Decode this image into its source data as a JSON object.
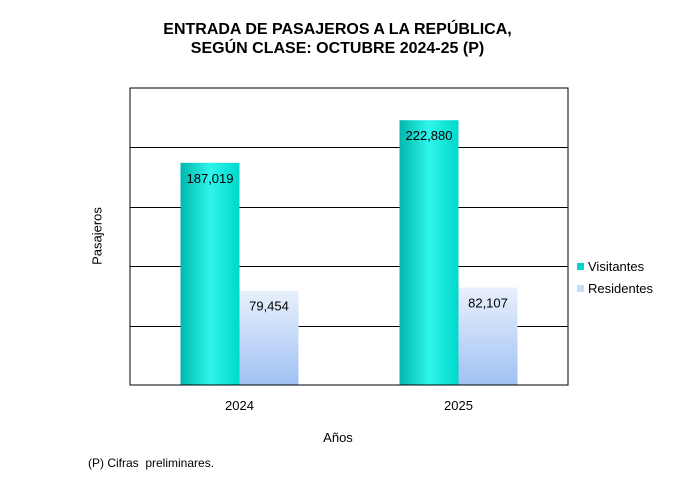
{
  "title_lines": [
    "ENTRADA DE PASAJEROS A LA REPÚBLICA,",
    "SEGÚN CLASE: OCTUBRE 2024-25 (P)"
  ],
  "footnote": "(P) Cifras  preliminares.",
  "colors": {
    "visitantes": "#00d8cc",
    "visitantes_light": "#2ff5ea",
    "residentes_top": "#e4edfb",
    "residentes_bottom": "#9fc1f3"
  },
  "chart_data": {
    "type": "bar",
    "title": "ENTRADA DE PASAJEROS A LA REPÚBLICA, SEGÚN CLASE: OCTUBRE 2024-25 (P)",
    "xlabel": "Años",
    "ylabel": "Pasajeros",
    "categories": [
      "2024",
      "2025"
    ],
    "series": [
      {
        "name": "Visitantes",
        "values": [
          187019,
          222880
        ],
        "labels": [
          "187,019",
          "222,880"
        ]
      },
      {
        "name": "Residentes",
        "values": [
          79454,
          82107
        ],
        "labels": [
          "79,454",
          "82,107"
        ]
      }
    ],
    "ylim": [
      0,
      250000
    ],
    "grid": true,
    "legend": "right"
  }
}
